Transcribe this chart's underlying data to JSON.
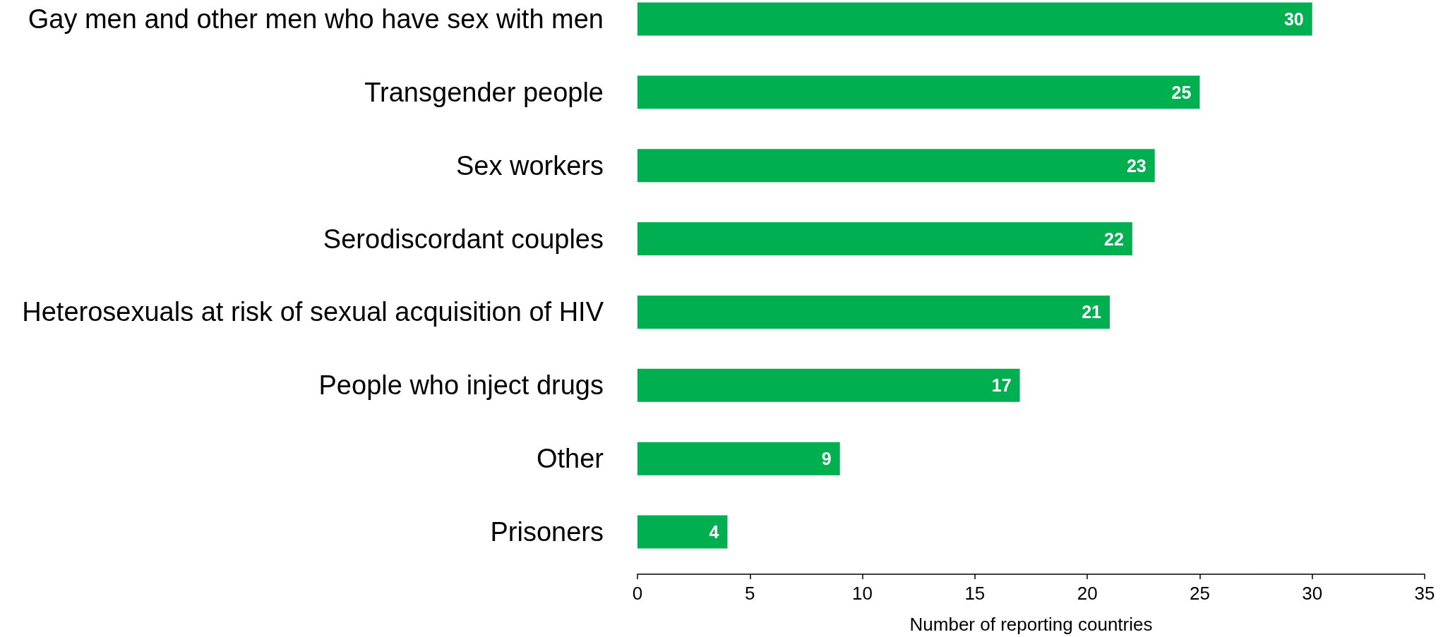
{
  "chart_data": {
    "type": "bar",
    "orientation": "horizontal",
    "categories": [
      "Gay men and other men who have sex with men",
      "Transgender people",
      "Sex workers",
      "Serodiscordant couples",
      "Heterosexuals at risk of sexual acquisition of HIV",
      "People who inject drugs",
      "Other",
      "Prisoners"
    ],
    "values": [
      30,
      25,
      23,
      22,
      21,
      17,
      9,
      4
    ],
    "color": "#00b050",
    "xlabel": "Number of reporting countries",
    "xlim": [
      0,
      35
    ],
    "xticks": [
      0,
      5,
      10,
      15,
      20,
      25,
      30,
      35
    ],
    "data_labels": true,
    "grid": false
  }
}
